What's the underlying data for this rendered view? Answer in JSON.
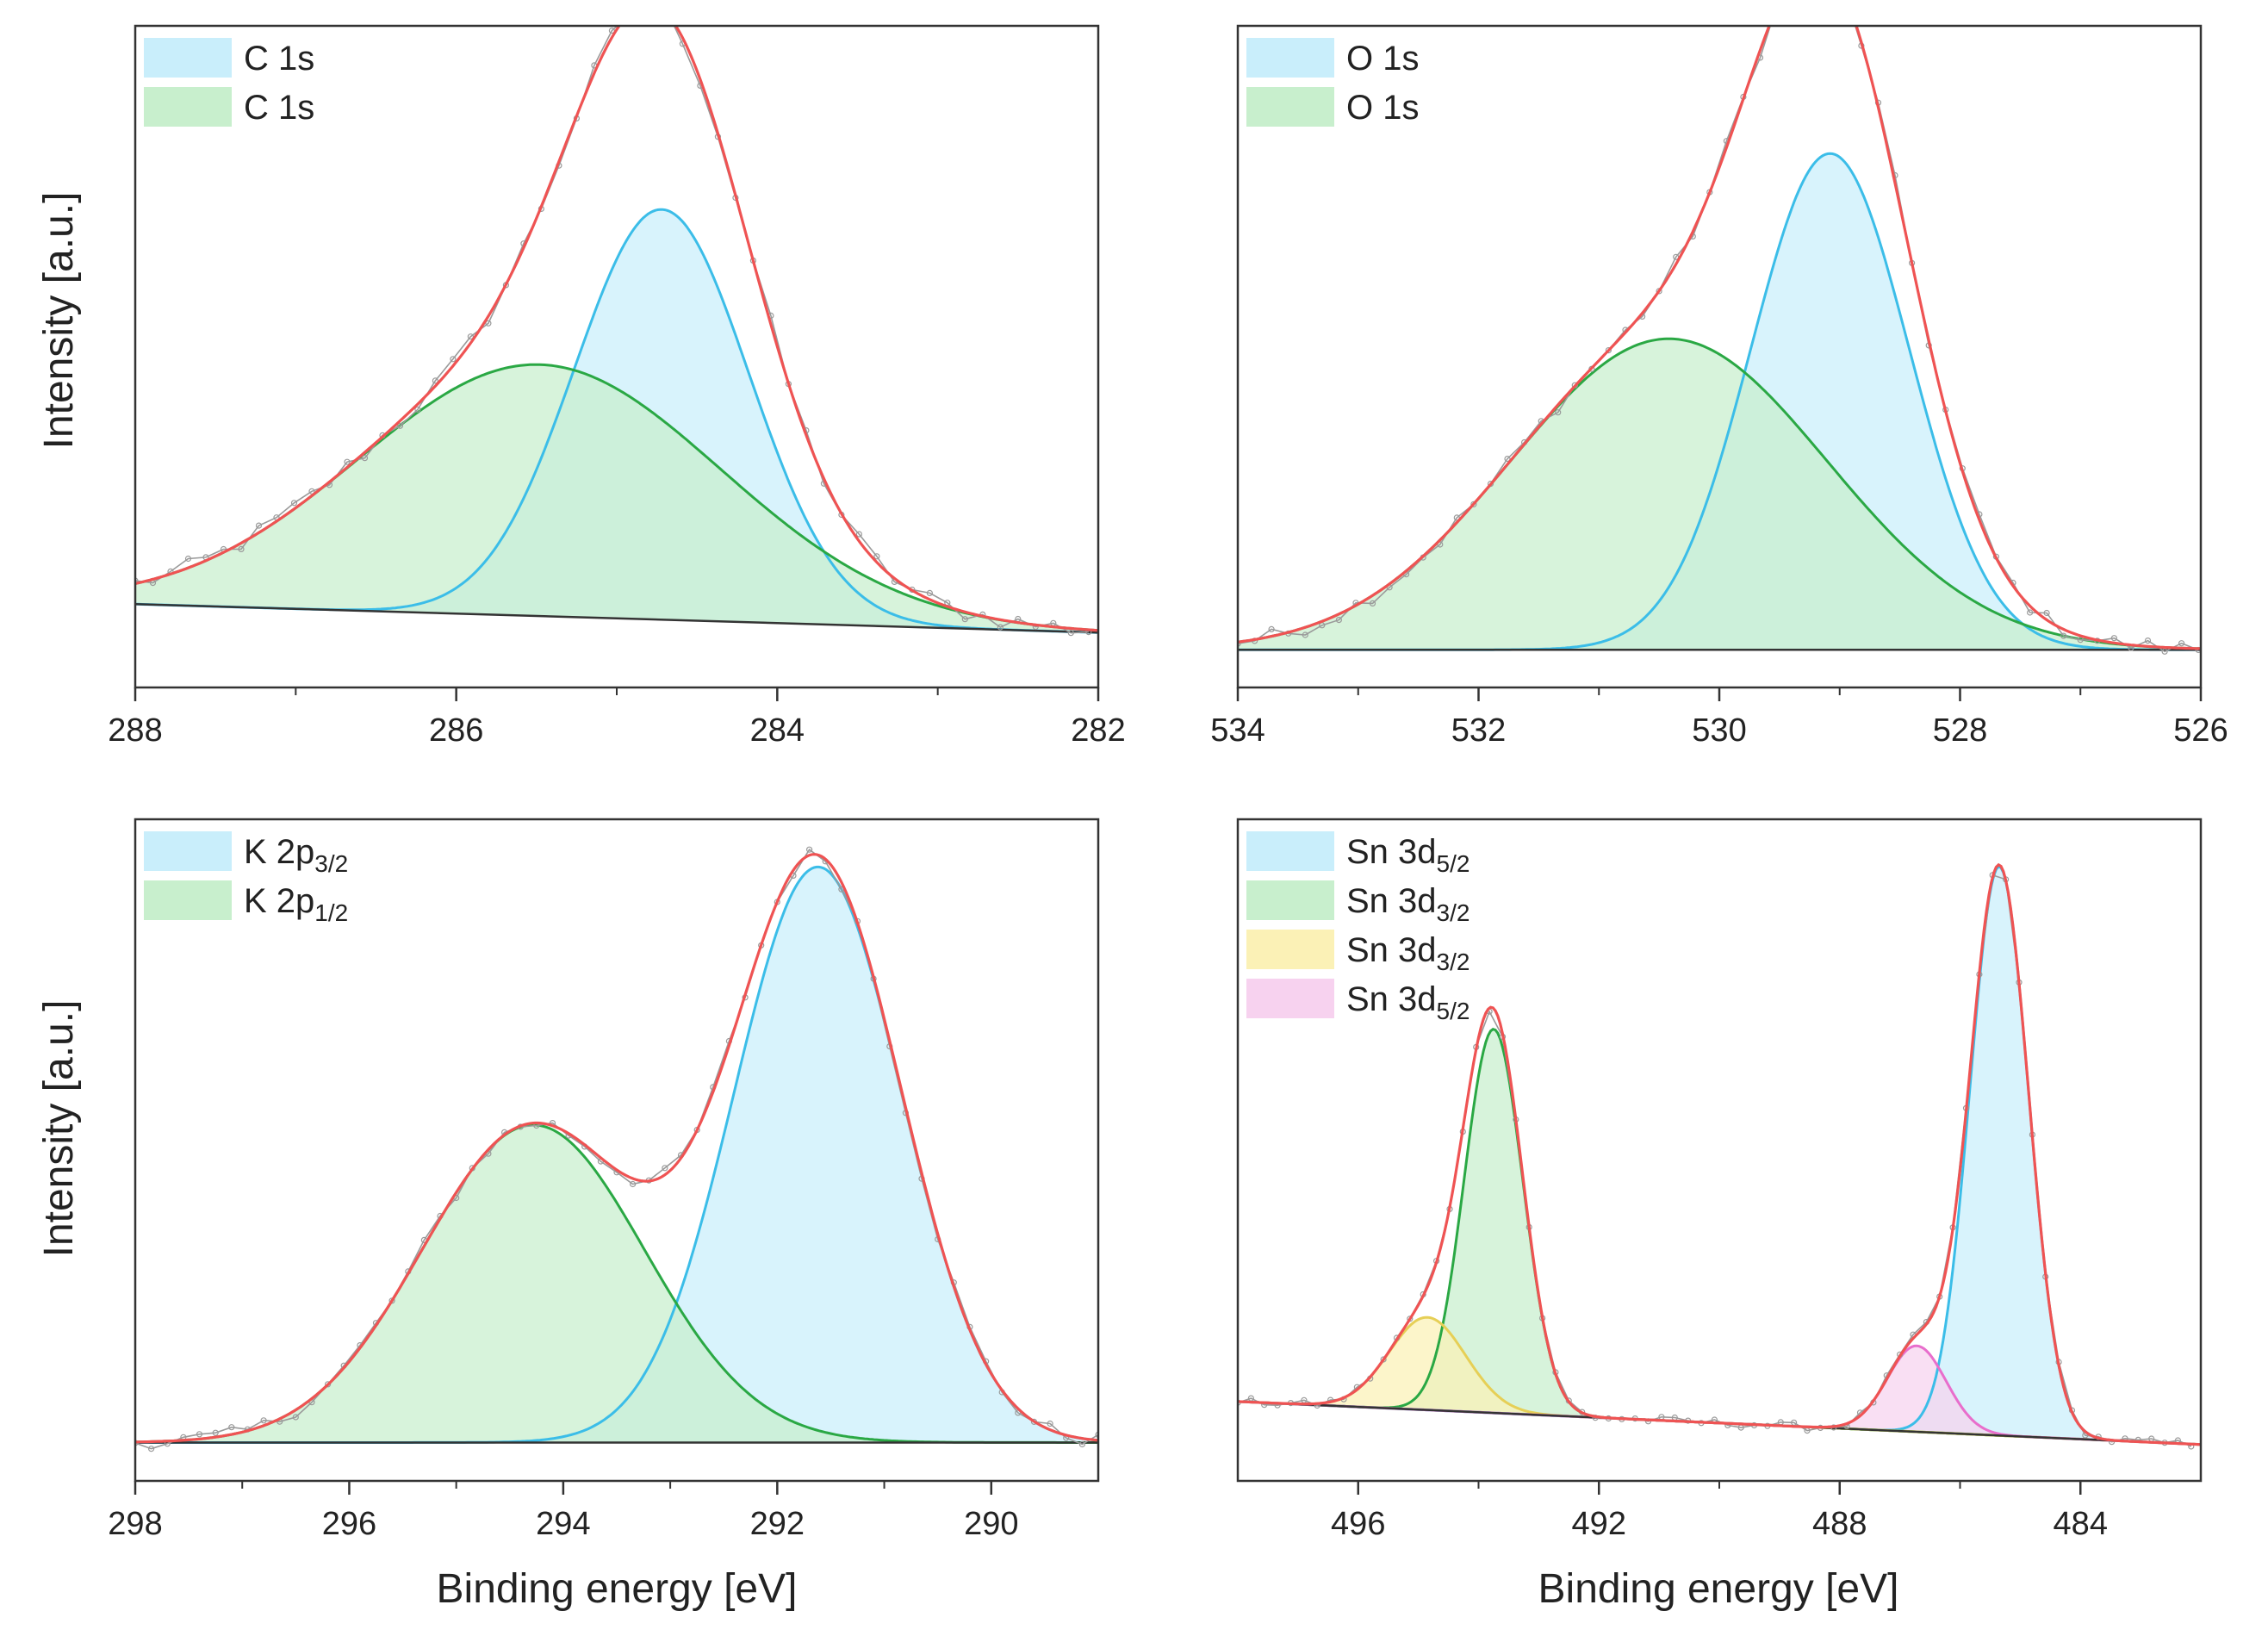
{
  "figure": {
    "ylabel": "Intensity [a.u.]",
    "xlabel": "Binding energy [eV]"
  },
  "colors": {
    "blue_fill": "#c9eefb",
    "blue_line": "#3bbde8",
    "green_fill": "#c8efcd",
    "green_line": "#2aa844",
    "yellow_fill": "#fbf1b6",
    "yellow_line": "#e6cf56",
    "pink_fill": "#f7d2ef",
    "pink_line": "#e86ecc",
    "envelope": "#ef5353",
    "raw": "#9a9a9a",
    "background": "#333333",
    "overlap_fill": "#8fe2cc"
  },
  "chart_data": [
    {
      "type": "line",
      "title": "",
      "xlabel": "",
      "ylabel": "Intensity [a.u.]",
      "xlim": [
        288,
        282
      ],
      "ylim": [
        0,
        1
      ],
      "xticks": [
        288,
        286,
        284,
        282
      ],
      "grid": false,
      "legend_position": "top-left",
      "background": {
        "start": 0.126,
        "end": 0.083
      },
      "legend": [
        {
          "label": "C 1s",
          "sub": "",
          "color": "blue"
        },
        {
          "label": "C 1s",
          "sub": "",
          "color": "green"
        }
      ],
      "series": [
        {
          "name": "C 1s",
          "color": "blue",
          "center": 284.72,
          "height": 0.62,
          "fwhm": 1.28
        },
        {
          "name": "C 1s",
          "color": "green",
          "center": 285.48,
          "height": 0.38,
          "fwhm": 2.65
        }
      ],
      "raw_noise": 0.014,
      "raw_step": 0.11
    },
    {
      "type": "line",
      "title": "",
      "xlabel": "",
      "ylabel": "",
      "xlim": [
        534,
        526
      ],
      "ylim": [
        0,
        1
      ],
      "xticks": [
        534,
        532,
        530,
        528,
        526
      ],
      "grid": false,
      "legend_position": "top-left",
      "background": {
        "start": 0.057,
        "end": 0.057
      },
      "legend": [
        {
          "label": "O 1s",
          "sub": "",
          "color": "blue"
        },
        {
          "label": "O 1s",
          "sub": "",
          "color": "green"
        }
      ],
      "series": [
        {
          "name": "O 1s",
          "color": "blue",
          "center": 529.08,
          "height": 0.75,
          "fwhm": 1.55
        },
        {
          "name": "O 1s",
          "color": "green",
          "center": 530.42,
          "height": 0.47,
          "fwhm": 3.1
        }
      ],
      "raw_noise": 0.012,
      "raw_step": 0.14
    },
    {
      "type": "line",
      "title": "",
      "xlabel": "Binding energy [eV]",
      "ylabel": "Intensity [a.u.]",
      "xlim": [
        298,
        289
      ],
      "ylim": [
        0,
        1
      ],
      "xticks": [
        298,
        296,
        294,
        292,
        290
      ],
      "grid": false,
      "legend_position": "top-left",
      "background": {
        "start": 0.058,
        "end": 0.058
      },
      "legend": [
        {
          "label": "K 2p",
          "sub": "3/2",
          "color": "blue"
        },
        {
          "label": "K 2p",
          "sub": "1/2",
          "color": "green"
        }
      ],
      "series": [
        {
          "name": "K 2p3/2",
          "color": "blue",
          "center": 291.62,
          "height": 0.87,
          "fwhm": 1.85
        },
        {
          "name": "K 2p1/2",
          "color": "green",
          "center": 294.28,
          "height": 0.48,
          "fwhm": 2.45
        }
      ],
      "raw_noise": 0.011,
      "raw_step": 0.15
    },
    {
      "type": "line",
      "title": "",
      "xlabel": "Binding energy [eV]",
      "ylabel": "",
      "xlim": [
        498,
        482
      ],
      "ylim": [
        0,
        1
      ],
      "xticks": [
        496,
        492,
        488,
        484
      ],
      "grid": false,
      "legend_position": "top-left",
      "background": {
        "start": 0.12,
        "end": 0.055
      },
      "legend": [
        {
          "label": "Sn 3d",
          "sub": "5/2",
          "color": "blue"
        },
        {
          "label": "Sn 3d",
          "sub": "3/2",
          "color": "green"
        },
        {
          "label": "Sn 3d",
          "sub": "3/2",
          "color": "yellow"
        },
        {
          "label": "Sn 3d",
          "sub": "5/2",
          "color": "pink"
        }
      ],
      "series": [
        {
          "name": "Sn 3d5/2",
          "color": "blue",
          "center": 485.35,
          "height": 0.86,
          "fwhm": 1.15
        },
        {
          "name": "Sn 3d3/2",
          "color": "green",
          "center": 493.75,
          "height": 0.58,
          "fwhm": 1.15
        },
        {
          "name": "Sn 3d3/2",
          "color": "yellow",
          "center": 494.85,
          "height": 0.14,
          "fwhm": 1.5
        },
        {
          "name": "Sn 3d5/2",
          "color": "pink",
          "center": 486.72,
          "height": 0.13,
          "fwhm": 1.15
        }
      ],
      "raw_noise": 0.006,
      "raw_step": 0.22
    }
  ]
}
